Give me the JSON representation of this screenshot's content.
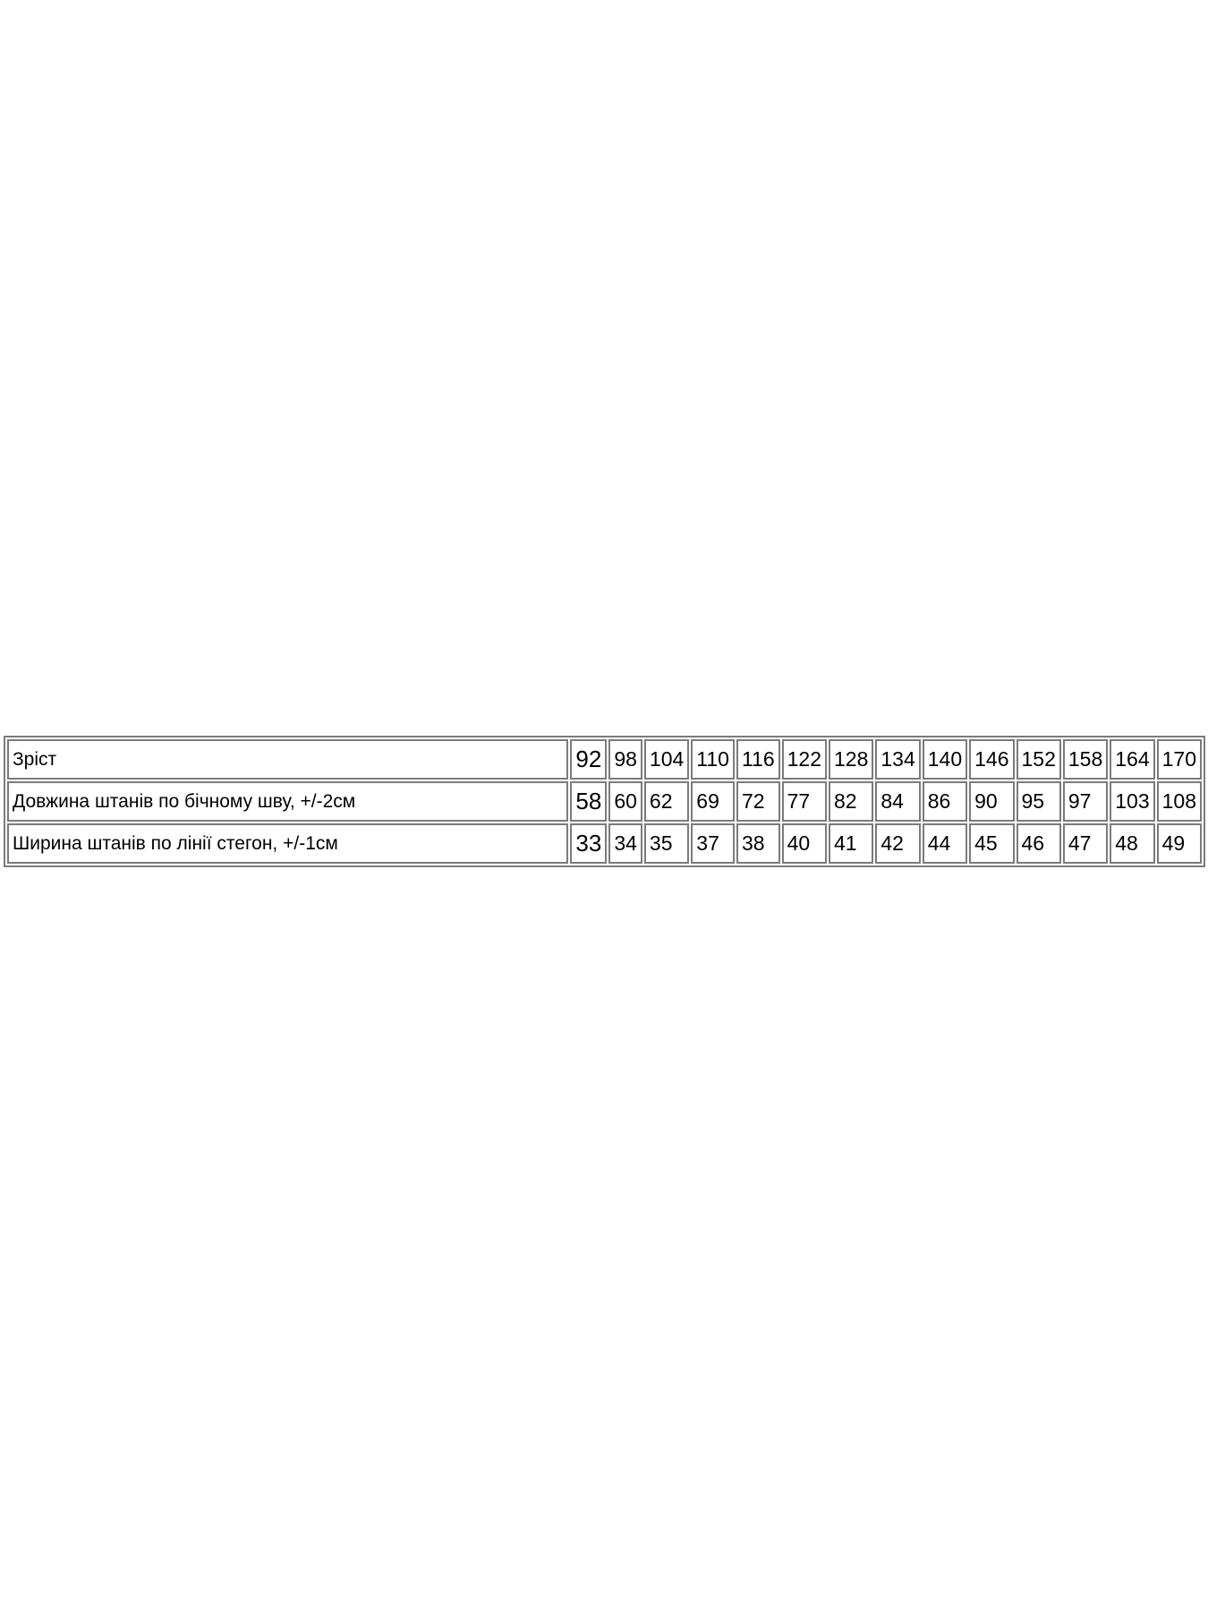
{
  "page": {
    "background_color": "#ffffff",
    "text_color": "#000000"
  },
  "table": {
    "border_color": "#7b7b7b",
    "rows": [
      {
        "label": "Зріст",
        "values": [
          "92",
          "98",
          "104",
          "110",
          "116",
          "122",
          "128",
          "134",
          "140",
          "146",
          "152",
          "158",
          "164",
          "170"
        ]
      },
      {
        "label": "Довжина штанів по бічному шву, +/-2см",
        "values": [
          "58",
          "60",
          "62",
          "69",
          "72",
          "77",
          "82",
          "84",
          "86",
          "90",
          "95",
          "97",
          "103",
          "108"
        ]
      },
      {
        "label": "Ширина штанів по лінії стегон, +/-1см",
        "values": [
          "33",
          "34",
          "35",
          "37",
          "38",
          "40",
          "41",
          "42",
          "44",
          "45",
          "46",
          "47",
          "48",
          "49"
        ]
      }
    ]
  },
  "chart_data": {
    "type": "table",
    "title": "",
    "categories": [
      92,
      98,
      104,
      110,
      116,
      122,
      128,
      134,
      140,
      146,
      152,
      158,
      164,
      170
    ],
    "series": [
      {
        "name": "Зріст",
        "values": [
          92,
          98,
          104,
          110,
          116,
          122,
          128,
          134,
          140,
          146,
          152,
          158,
          164,
          170
        ]
      },
      {
        "name": "Довжина штанів по бічному шву, +/-2см",
        "values": [
          58,
          60,
          62,
          69,
          72,
          77,
          82,
          84,
          86,
          90,
          95,
          97,
          103,
          108
        ]
      },
      {
        "name": "Ширина штанів по лінії стегон, +/-1см",
        "values": [
          33,
          34,
          35,
          37,
          38,
          40,
          41,
          42,
          44,
          45,
          46,
          47,
          48,
          49
        ]
      }
    ],
    "layout_hints": {
      "grid": true,
      "first_column_is_row_label": true,
      "cell_text_align": "left"
    }
  }
}
